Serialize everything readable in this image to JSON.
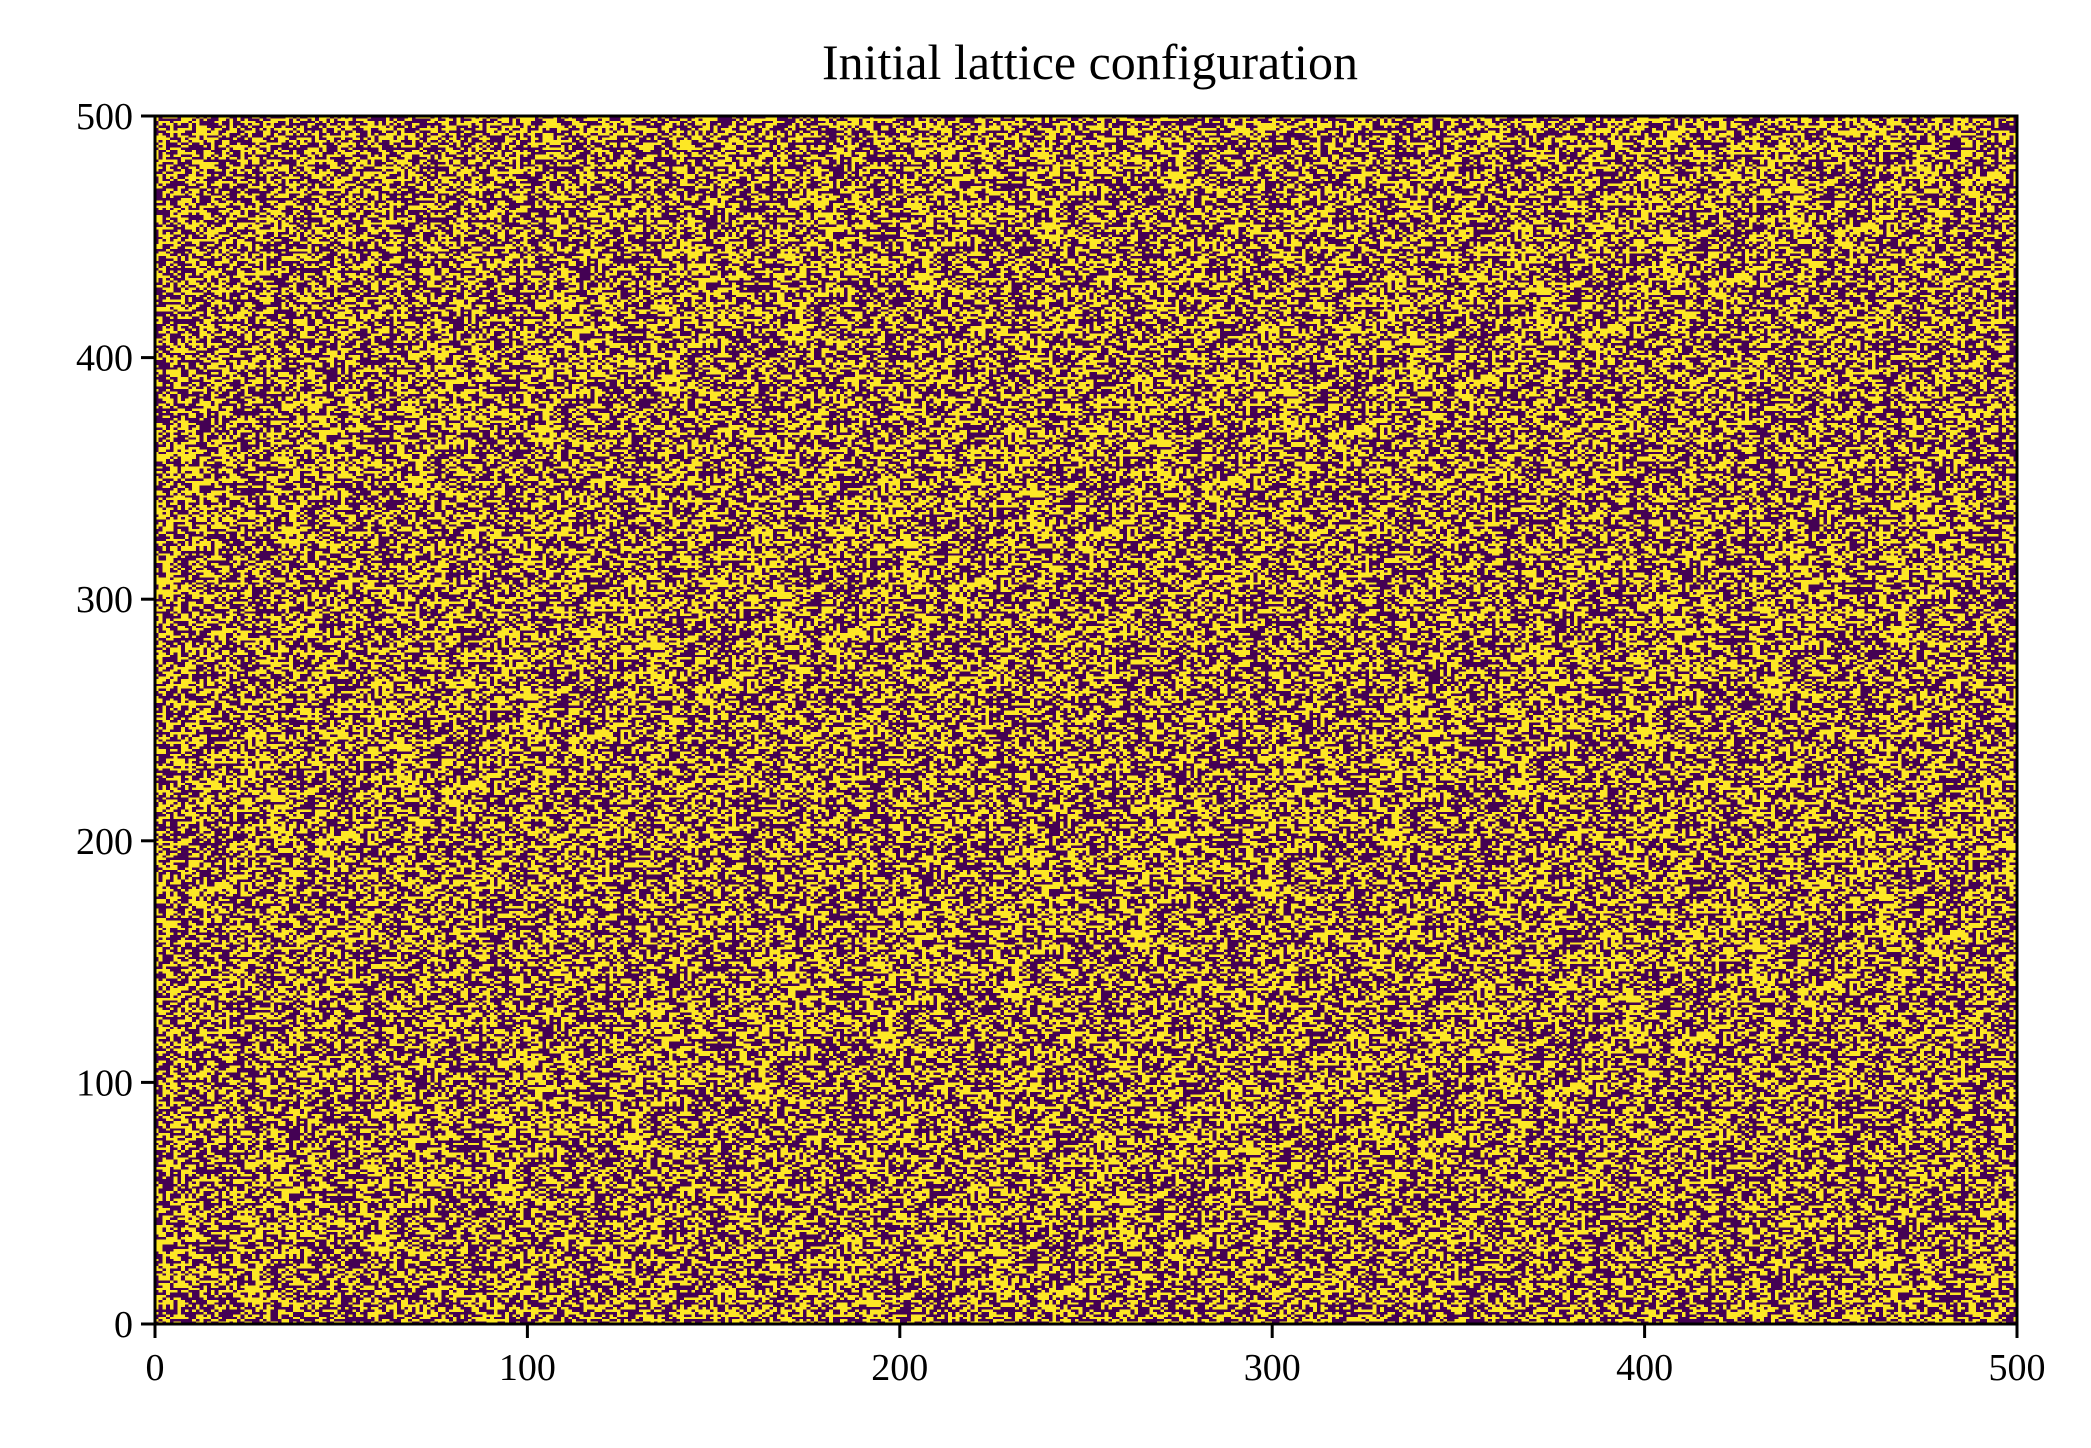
{
  "chart_data": {
    "type": "heatmap",
    "title": "Initial lattice configuration",
    "xlabel": "",
    "ylabel": "",
    "xlim": [
      0,
      500
    ],
    "ylim": [
      0,
      500
    ],
    "lattice_size": [
      500,
      500
    ],
    "states": [
      -1,
      1
    ],
    "state_colors": {
      "-1": "#440154",
      "1": "#fde725"
    },
    "distribution": "uniform random",
    "xticks": [
      "0",
      "100",
      "200",
      "300",
      "400",
      "500"
    ],
    "yticks": [
      "0",
      "100",
      "200",
      "300",
      "400",
      "500"
    ],
    "xtick_values": [
      0,
      100,
      200,
      300,
      400,
      500
    ],
    "ytick_values": [
      0,
      100,
      200,
      300,
      400,
      500
    ],
    "grid": false,
    "legend": "none"
  }
}
